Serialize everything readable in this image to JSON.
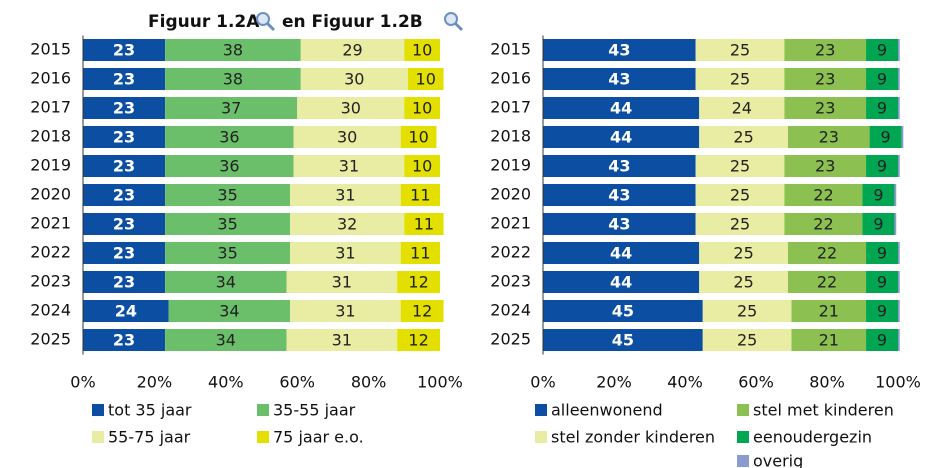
{
  "heading": [
    "Figuur 1.2A",
    "en Figuur 1.2B"
  ],
  "chart_data": [
    {
      "type": "stacked-bar-horizontal",
      "categories": [
        "2015",
        "2016",
        "2017",
        "2018",
        "2019",
        "2020",
        "2021",
        "2022",
        "2023",
        "2024",
        "2025"
      ],
      "series": [
        {
          "name": "tot 35 jaar",
          "color": "#0b4ea2",
          "values": [
            23,
            23,
            23,
            23,
            23,
            23,
            23,
            23,
            23,
            24,
            23
          ]
        },
        {
          "name": "35-55 jaar",
          "color": "#6cbf6a",
          "values": [
            38,
            38,
            37,
            36,
            36,
            35,
            35,
            35,
            34,
            34,
            34
          ]
        },
        {
          "name": "55-75 jaar",
          "color": "#e9eca3",
          "values": [
            29,
            30,
            30,
            30,
            31,
            31,
            32,
            31,
            31,
            31,
            31
          ]
        },
        {
          "name": "75 jaar e.o.",
          "color": "#e3e000",
          "values": [
            10,
            10,
            10,
            10,
            10,
            11,
            11,
            11,
            12,
            12,
            12
          ]
        }
      ],
      "xlim": [
        0,
        100
      ],
      "xticks": [
        {
          "value": 0,
          "label": "0%"
        },
        {
          "value": 20,
          "label": "20%"
        },
        {
          "value": 40,
          "label": "40%"
        },
        {
          "value": 60,
          "label": "60%"
        },
        {
          "value": 80,
          "label": "80%"
        },
        {
          "value": 100,
          "label": "100%"
        }
      ]
    },
    {
      "type": "stacked-bar-horizontal",
      "categories": [
        "2015",
        "2016",
        "2017",
        "2018",
        "2019",
        "2020",
        "2021",
        "2022",
        "2023",
        "2024",
        "2025"
      ],
      "series": [
        {
          "name": "alleenwonend",
          "color": "#0b4ea2",
          "values": [
            43,
            43,
            44,
            44,
            43,
            43,
            43,
            44,
            44,
            45,
            45
          ]
        },
        {
          "name": "stel zonder kinderen",
          "color": "#e9eca3",
          "values": [
            25,
            25,
            24,
            25,
            25,
            25,
            25,
            25,
            25,
            25,
            25
          ]
        },
        {
          "name": "stel met kinderen",
          "color": "#8cc152",
          "values": [
            23,
            23,
            23,
            23,
            23,
            22,
            22,
            22,
            22,
            21,
            21
          ]
        },
        {
          "name": "eenoudergezin",
          "color": "#00a651",
          "values": [
            9,
            9,
            9,
            9,
            9,
            9,
            9,
            9,
            9,
            9,
            9
          ]
        },
        {
          "name": "overig",
          "color": "#8a9bd0",
          "values": [
            0.5,
            0.5,
            0.5,
            0.5,
            0.5,
            0.5,
            0.5,
            0.5,
            0.5,
            0.5,
            0.5
          ],
          "show_labels": false
        }
      ],
      "xlim": [
        0,
        100
      ],
      "xticks": [
        {
          "value": 0,
          "label": "0%"
        },
        {
          "value": 20,
          "label": "20%"
        },
        {
          "value": 40,
          "label": "40%"
        },
        {
          "value": 60,
          "label": "60%"
        },
        {
          "value": 80,
          "label": "80%"
        },
        {
          "value": 100,
          "label": "100%"
        }
      ]
    }
  ]
}
